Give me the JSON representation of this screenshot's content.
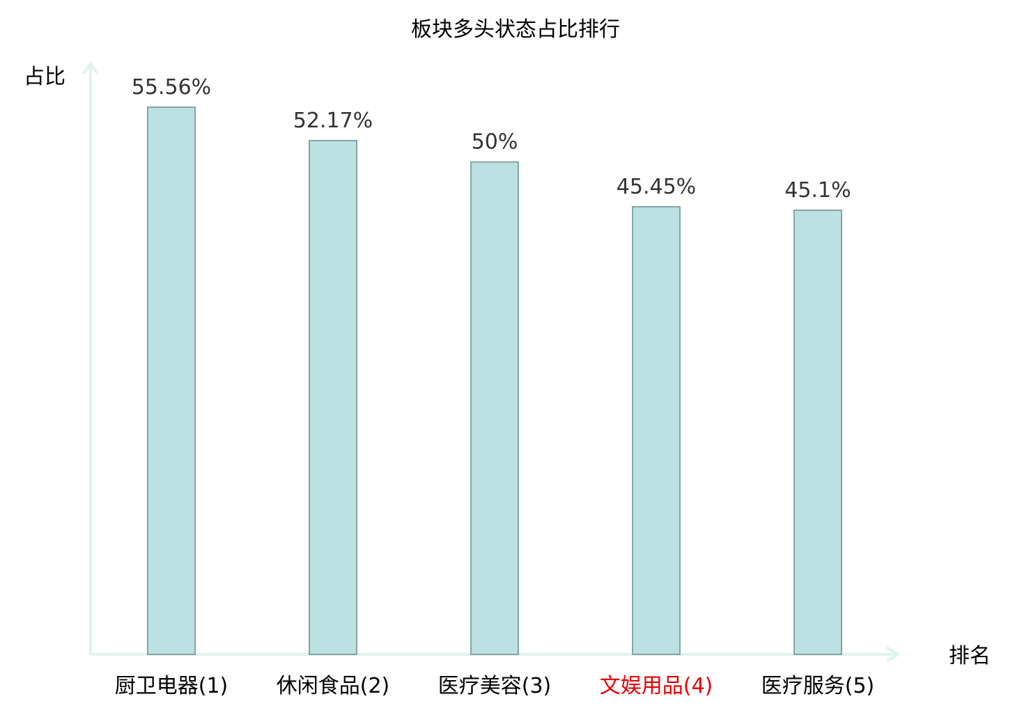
{
  "chart_data": {
    "type": "bar",
    "title": "板块多头状态占比排行",
    "xlabel": "排名",
    "ylabel": "占比",
    "categories": [
      "厨卫电器(1)",
      "休闲食品(2)",
      "医疗美容(3)",
      "文娱用品(4)",
      "医疗服务(5)"
    ],
    "values": [
      55.56,
      52.17,
      50,
      45.45,
      45.1
    ],
    "value_labels": [
      "55.56%",
      "52.17%",
      "50%",
      "45.45%",
      "45.1%"
    ],
    "highlight_index": 3,
    "ylim": [
      0,
      60
    ],
    "grid": false,
    "legend": "none"
  },
  "colors": {
    "bar_fill": "#bce1e2",
    "bar_stroke": "#87a3a4",
    "axis": "#e0f3f0",
    "label": "#000000",
    "value_label": "#333333",
    "highlight": "#e60000"
  }
}
